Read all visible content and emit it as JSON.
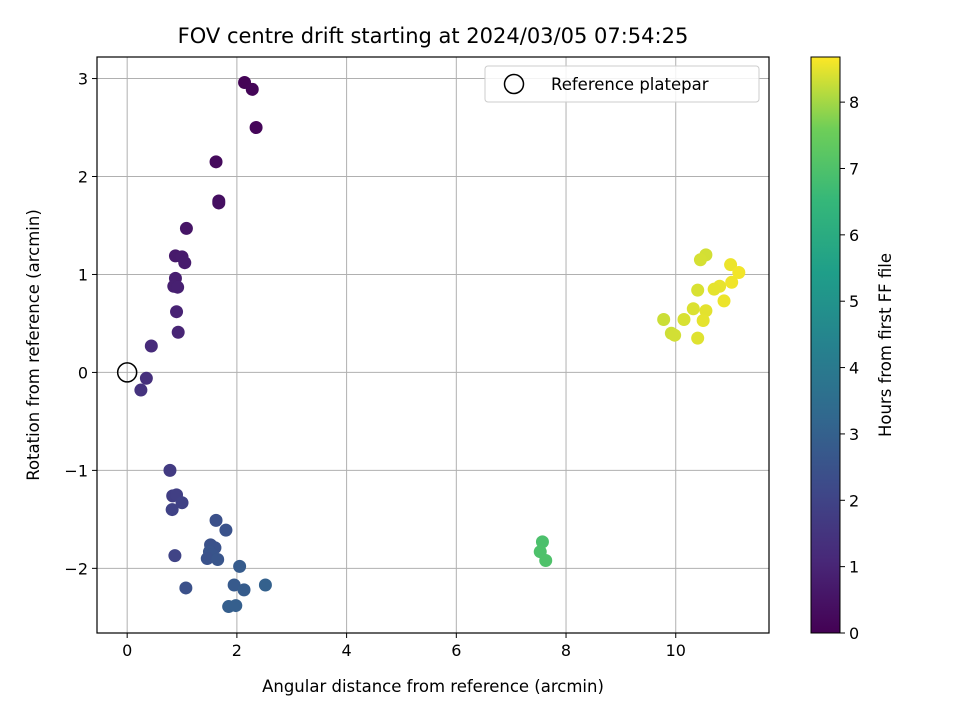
{
  "chart_data": {
    "type": "scatter",
    "title": "FOV centre drift starting at 2024/03/05 07:54:25",
    "xlabel": "Angular distance from reference (arcmin)",
    "ylabel": "Rotation from reference (arcmin)",
    "xlim": [
      -0.55,
      11.7
    ],
    "ylim": [
      -2.66,
      3.22
    ],
    "xticks": [
      0,
      2,
      4,
      6,
      8,
      10
    ],
    "yticks": [
      -2,
      -1,
      0,
      1,
      2,
      3
    ],
    "xtick_labels": [
      "0",
      "2",
      "4",
      "6",
      "8",
      "10"
    ],
    "ytick_labels": [
      "−2",
      "−1",
      "0",
      "1",
      "2",
      "3"
    ],
    "grid": true,
    "legend": {
      "placement": "top-right",
      "entries": [
        "Reference platepar"
      ]
    },
    "reference_point": {
      "x": 0,
      "y": 0
    },
    "colorbar": {
      "label": "Hours from first FF file",
      "colormap": "viridis",
      "range": [
        0,
        8.68
      ],
      "ticks": [
        0,
        1,
        2,
        3,
        4,
        5,
        6,
        7,
        8
      ],
      "tick_labels": [
        "0",
        "1",
        "2",
        "3",
        "4",
        "5",
        "6",
        "7",
        "8"
      ]
    },
    "points": [
      {
        "x": 2.14,
        "y": 2.96,
        "t": 0.05
      },
      {
        "x": 2.28,
        "y": 2.89,
        "t": 0.1
      },
      {
        "x": 2.35,
        "y": 2.5,
        "t": 0.15
      },
      {
        "x": 1.62,
        "y": 2.15,
        "t": 0.25
      },
      {
        "x": 1.67,
        "y": 1.75,
        "t": 0.35
      },
      {
        "x": 1.67,
        "y": 1.73,
        "t": 0.4
      },
      {
        "x": 1.08,
        "y": 1.47,
        "t": 0.55
      },
      {
        "x": 0.88,
        "y": 1.19,
        "t": 0.7
      },
      {
        "x": 1.0,
        "y": 1.18,
        "t": 0.72
      },
      {
        "x": 1.05,
        "y": 1.12,
        "t": 0.75
      },
      {
        "x": 0.88,
        "y": 0.96,
        "t": 0.8
      },
      {
        "x": 0.85,
        "y": 0.88,
        "t": 0.85
      },
      {
        "x": 0.92,
        "y": 0.87,
        "t": 0.87
      },
      {
        "x": 0.9,
        "y": 0.62,
        "t": 0.95
      },
      {
        "x": 0.93,
        "y": 0.41,
        "t": 1.0
      },
      {
        "x": 0.44,
        "y": 0.27,
        "t": 1.2
      },
      {
        "x": 0.35,
        "y": -0.06,
        "t": 1.35
      },
      {
        "x": 0.25,
        "y": -0.18,
        "t": 1.45
      },
      {
        "x": 0.78,
        "y": -1.0,
        "t": 1.7
      },
      {
        "x": 0.83,
        "y": -1.26,
        "t": 1.8
      },
      {
        "x": 0.9,
        "y": -1.25,
        "t": 1.85
      },
      {
        "x": 1.0,
        "y": -1.33,
        "t": 1.9
      },
      {
        "x": 0.82,
        "y": -1.4,
        "t": 1.95
      },
      {
        "x": 0.87,
        "y": -1.87,
        "t": 2.0
      },
      {
        "x": 1.62,
        "y": -1.51,
        "t": 2.4
      },
      {
        "x": 1.8,
        "y": -1.61,
        "t": 2.5
      },
      {
        "x": 1.52,
        "y": -1.76,
        "t": 2.45
      },
      {
        "x": 1.6,
        "y": -1.79,
        "t": 2.5
      },
      {
        "x": 1.5,
        "y": -1.83,
        "t": 2.55
      },
      {
        "x": 1.55,
        "y": -1.86,
        "t": 2.55
      },
      {
        "x": 1.46,
        "y": -1.9,
        "t": 2.5
      },
      {
        "x": 1.65,
        "y": -1.91,
        "t": 2.6
      },
      {
        "x": 2.05,
        "y": -1.98,
        "t": 2.8
      },
      {
        "x": 1.07,
        "y": -2.2,
        "t": 2.45
      },
      {
        "x": 1.95,
        "y": -2.17,
        "t": 2.75
      },
      {
        "x": 2.13,
        "y": -2.22,
        "t": 2.85
      },
      {
        "x": 2.52,
        "y": -2.17,
        "t": 3.0
      },
      {
        "x": 1.85,
        "y": -2.39,
        "t": 2.9
      },
      {
        "x": 1.98,
        "y": -2.38,
        "t": 2.95
      },
      {
        "x": 7.57,
        "y": -1.73,
        "t": 6.95
      },
      {
        "x": 7.53,
        "y": -1.83,
        "t": 6.98
      },
      {
        "x": 7.63,
        "y": -1.92,
        "t": 7.0
      },
      {
        "x": 10.55,
        "y": 1.2,
        "t": 8.35
      },
      {
        "x": 10.45,
        "y": 1.15,
        "t": 8.38
      },
      {
        "x": 11.0,
        "y": 1.1,
        "t": 8.55
      },
      {
        "x": 11.15,
        "y": 1.02,
        "t": 8.6
      },
      {
        "x": 11.02,
        "y": 0.92,
        "t": 8.58
      },
      {
        "x": 10.8,
        "y": 0.88,
        "t": 8.52
      },
      {
        "x": 10.7,
        "y": 0.85,
        "t": 8.5
      },
      {
        "x": 10.4,
        "y": 0.84,
        "t": 8.4
      },
      {
        "x": 10.88,
        "y": 0.73,
        "t": 8.55
      },
      {
        "x": 10.32,
        "y": 0.65,
        "t": 8.42
      },
      {
        "x": 10.55,
        "y": 0.63,
        "t": 8.48
      },
      {
        "x": 10.15,
        "y": 0.54,
        "t": 8.4
      },
      {
        "x": 10.5,
        "y": 0.53,
        "t": 8.5
      },
      {
        "x": 9.78,
        "y": 0.54,
        "t": 8.3
      },
      {
        "x": 9.92,
        "y": 0.4,
        "t": 8.32
      },
      {
        "x": 9.98,
        "y": 0.38,
        "t": 8.35
      },
      {
        "x": 10.4,
        "y": 0.35,
        "t": 8.45
      }
    ]
  }
}
